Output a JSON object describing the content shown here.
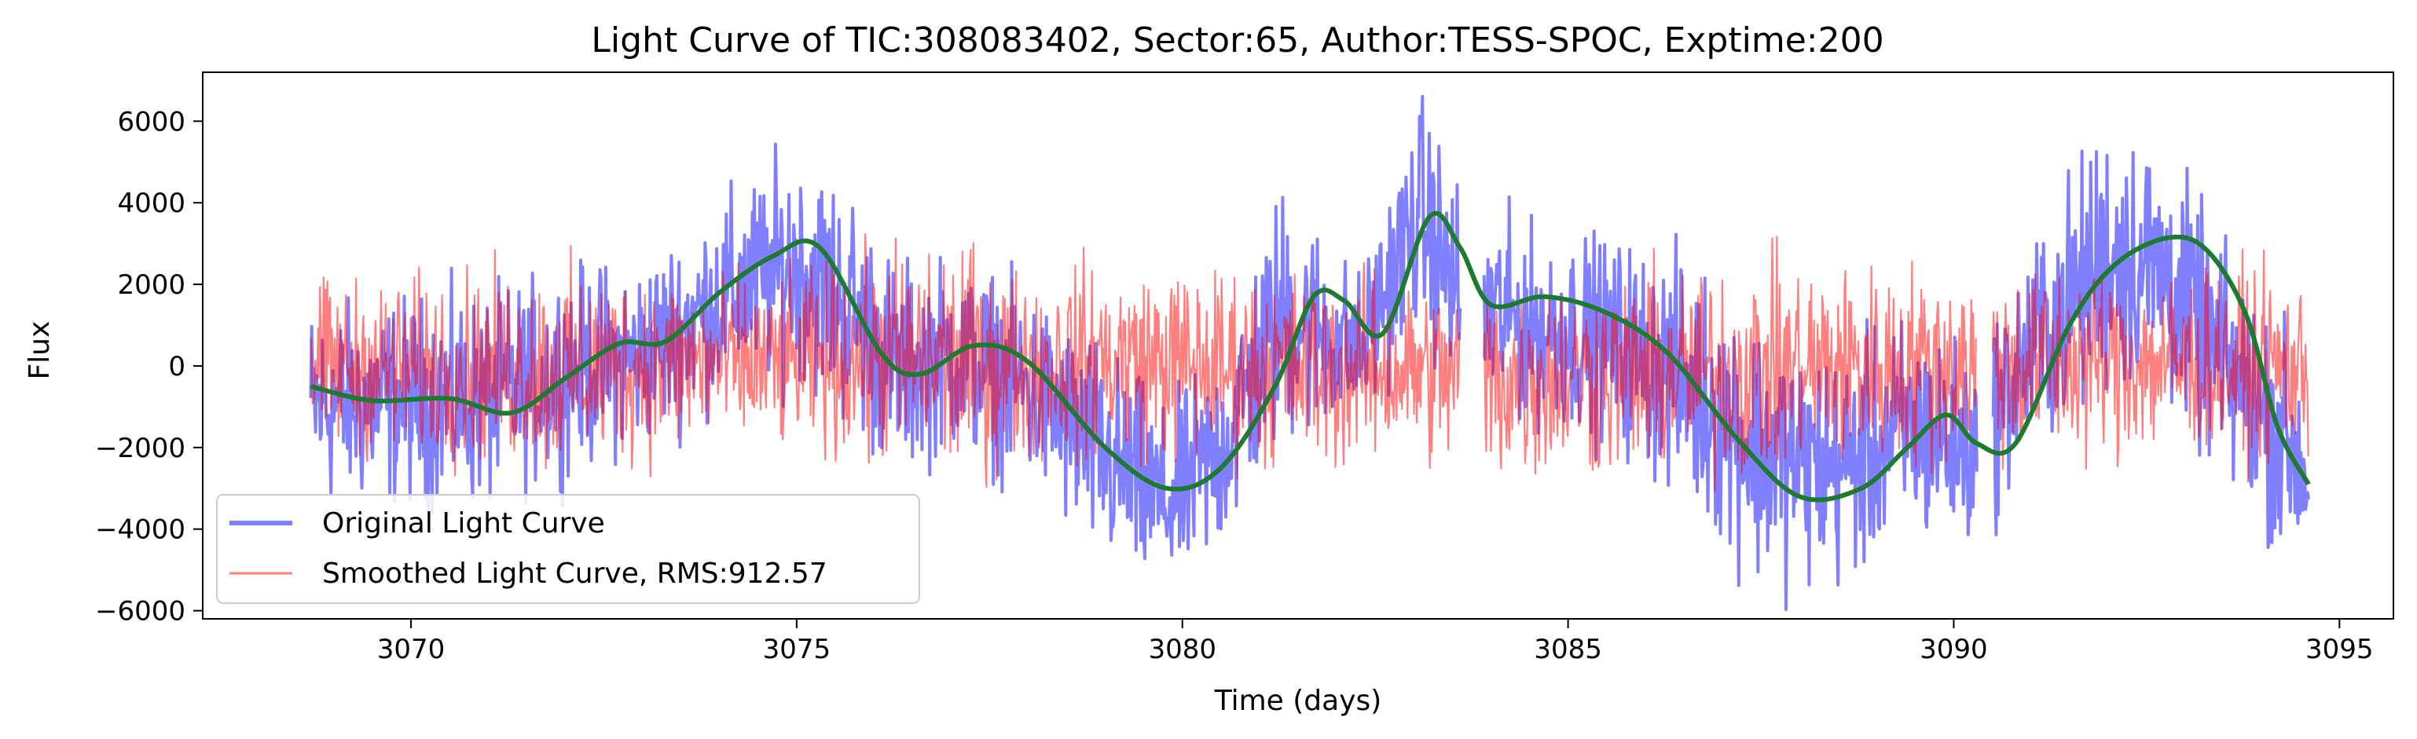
{
  "chart_data": {
    "type": "line",
    "title": "Light Curve of TIC:308083402, Sector:65, Author:TESS-SPOC, Exptime:200",
    "xlabel": "Time (days)",
    "ylabel": "Flux",
    "xlim": [
      3067.3,
      3095.7
    ],
    "ylim": [
      -6200,
      7200
    ],
    "xticks": [
      3070,
      3075,
      3080,
      3085,
      3090,
      3095
    ],
    "yticks": [
      -6000,
      -4000,
      -2000,
      0,
      2000,
      4000,
      6000
    ],
    "grid": false,
    "legend_position": "lower-left",
    "gaps": [
      [
        3083.6,
        3083.9
      ],
      [
        3090.3,
        3090.5
      ]
    ],
    "series": [
      {
        "name": "Original Light Curve",
        "color": "#0000ff",
        "opacity": 0.5,
        "style": "thick-noisy",
        "envelope": {
          "x": [
            3068.7,
            3070,
            3071,
            3072,
            3073,
            3074,
            3075,
            3075.7,
            3076.3,
            3077,
            3078,
            3079,
            3079.8,
            3080.5,
            3081.3,
            3082.3,
            3083.1,
            3083.6,
            3084.5,
            3085.5,
            3086.5,
            3087.5,
            3088.5,
            3089.5,
            3090.3,
            3091,
            3092,
            3092.7,
            3093.5,
            3094.6
          ],
          "upper": [
            1400,
            1600,
            1700,
            2300,
            2500,
            4000,
            5300,
            4300,
            2400,
            2600,
            1800,
            400,
            -1200,
            400,
            4400,
            2200,
            6500,
            4300,
            3300,
            3100,
            2600,
            1000,
            200,
            1200,
            200,
            3000,
            6100,
            5400,
            2800,
            200
          ],
          "lower": [
            -3400,
            -3300,
            -3400,
            -2500,
            -2000,
            -800,
            -200,
            -1500,
            -2700,
            -2000,
            -2900,
            -5000,
            -5600,
            -4600,
            -1800,
            -1500,
            1200,
            -1200,
            -1300,
            -1800,
            -3200,
            -5300,
            -5300,
            -4300,
            -4400,
            -2200,
            -500,
            -700,
            -2800,
            -5300
          ]
        }
      },
      {
        "name": "Smoothed Light Curve, RMS:912.57",
        "color": "#ff0000",
        "opacity": 0.5,
        "style": "thin-noisy",
        "envelope": {
          "x": [
            3068.7,
            3070,
            3071,
            3072,
            3073,
            3074,
            3075,
            3076,
            3077,
            3078,
            3079,
            3080,
            3081,
            3082,
            3083,
            3084,
            3085,
            3086,
            3087,
            3088,
            3089,
            3090,
            3091,
            3092,
            3093,
            3094.6
          ],
          "upper": [
            2000,
            2100,
            2300,
            2400,
            2300,
            2200,
            2100,
            2800,
            3000,
            2300,
            2500,
            2400,
            2300,
            2200,
            2000,
            2100,
            2100,
            2300,
            2400,
            2500,
            2400,
            2500,
            2300,
            2400,
            2300,
            2100
          ],
          "lower": [
            -2000,
            -2200,
            -2400,
            -2600,
            -2300,
            -2100,
            -2000,
            -2400,
            -2800,
            -2300,
            -2200,
            -2300,
            -2400,
            -2500,
            -2200,
            -2900,
            -2600,
            -2700,
            -2800,
            -2600,
            -2500,
            -2400,
            -2300,
            -2200,
            -2200,
            -2300
          ]
        }
      },
      {
        "name": "",
        "color": "#1e7a2e",
        "style": "smooth-trend",
        "x": [
          3068.7,
          3069.5,
          3070.5,
          3071.3,
          3072,
          3072.7,
          3073.3,
          3074,
          3074.7,
          3075.3,
          3076.1,
          3076.6,
          3077.3,
          3078,
          3079,
          3079.8,
          3080.5,
          3081.2,
          3081.7,
          3082.1,
          3082.6,
          3083.2,
          3083.6,
          3084,
          3084.7,
          3085.5,
          3086.3,
          3087.2,
          3088,
          3088.8,
          3089.4,
          3089.9,
          3090.3,
          3090.8,
          3091.5,
          3092.1,
          3092.8,
          3093.3,
          3093.8,
          3094.2,
          3094.6
        ],
        "y": [
          -500,
          -850,
          -800,
          -1150,
          -300,
          550,
          600,
          1800,
          2700,
          2900,
          300,
          -200,
          500,
          100,
          -2000,
          -3000,
          -2500,
          -500,
          1700,
          1600,
          800,
          3650,
          2900,
          1500,
          1700,
          1300,
          300,
          -1800,
          -3200,
          -3000,
          -2000,
          -1200,
          -1900,
          -1900,
          1000,
          2500,
          3150,
          2800,
          1200,
          -1500,
          -2900
        ]
      }
    ]
  }
}
